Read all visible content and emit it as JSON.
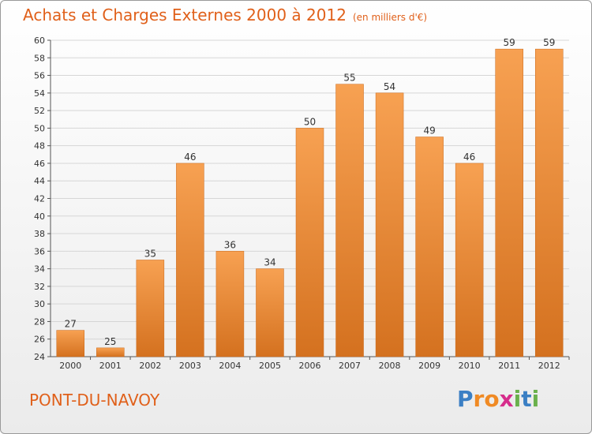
{
  "chart_data": {
    "type": "bar",
    "title": "Achats et Charges Externes 2000 à 2012",
    "unit": "(en milliers d'€)",
    "categories": [
      "2000",
      "2001",
      "2002",
      "2003",
      "2004",
      "2005",
      "2006",
      "2007",
      "2008",
      "2009",
      "2010",
      "2011",
      "2012"
    ],
    "values": [
      27,
      25,
      35,
      46,
      36,
      34,
      50,
      55,
      54,
      49,
      46,
      59,
      59
    ],
    "ylim": [
      24,
      60
    ],
    "yticks": [
      24,
      26,
      28,
      30,
      32,
      34,
      36,
      38,
      40,
      42,
      44,
      46,
      48,
      50,
      52,
      54,
      56,
      58,
      60
    ],
    "grid": true,
    "bar_color": "#f0913c"
  },
  "footer": {
    "commune": "PONT-DU-NAVOY",
    "logo_letters": [
      "P",
      "r",
      "o",
      "x",
      "i",
      "t",
      "i"
    ],
    "logo_colors": [
      "#3b7fc4",
      "#f08a24",
      "#f08a24",
      "#d62d8c",
      "#6ab04c",
      "#3b7fc4",
      "#6ab04c"
    ]
  }
}
